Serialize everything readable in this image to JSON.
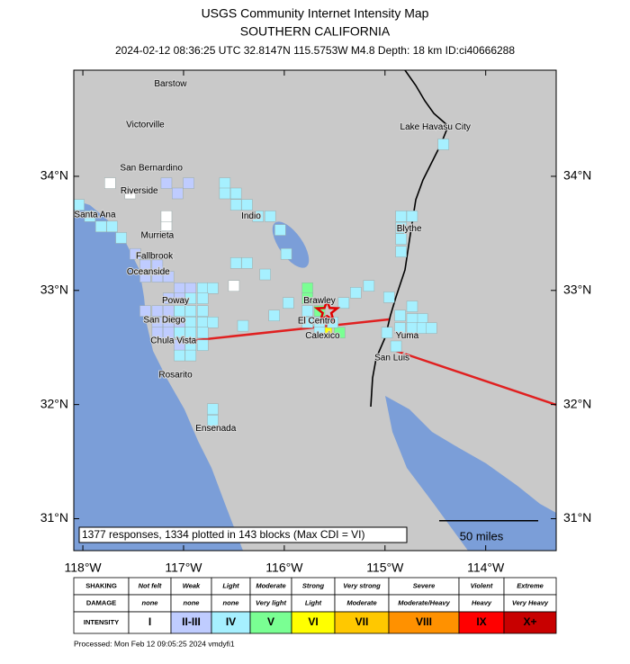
{
  "header": {
    "title": "USGS Community Internet Intensity Map",
    "region": "SOUTHERN CALIFORNIA",
    "event": "2024-02-12 08:36:25 UTC 32.8147N 115.5753W M4.8 Depth: 18 km ID:ci40666288"
  },
  "map": {
    "lonlim": [
      -118.09,
      -113.3
    ],
    "latlim": [
      30.72,
      34.93
    ],
    "lat_ticks": [
      {
        "value": 34,
        "label": "34°N"
      },
      {
        "value": 33,
        "label": "33°N"
      },
      {
        "value": 32,
        "label": "32°N"
      },
      {
        "value": 31,
        "label": "31°N"
      }
    ],
    "lon_ticks": [
      {
        "value": -118,
        "label": "118°W"
      },
      {
        "value": -117,
        "label": "117°W"
      },
      {
        "value": -116,
        "label": "116°W"
      },
      {
        "value": -115,
        "label": "115°W"
      },
      {
        "value": -114,
        "label": "114°W"
      }
    ],
    "epicenter": {
      "lon": -115.5753,
      "lat": 32.8147
    },
    "cities": [
      {
        "name": "Barstow",
        "lon": -117.13,
        "lat": 34.81
      },
      {
        "name": "Victorville",
        "lon": -117.38,
        "lat": 34.45
      },
      {
        "name": "San Bernardino",
        "lon": -117.32,
        "lat": 34.07
      },
      {
        "name": "Riverside",
        "lon": -117.44,
        "lat": 33.87
      },
      {
        "name": "Santa Ana",
        "lon": -117.88,
        "lat": 33.66
      },
      {
        "name": "Murrieta",
        "lon": -117.26,
        "lat": 33.48
      },
      {
        "name": "Fallbrook",
        "lon": -117.29,
        "lat": 33.3
      },
      {
        "name": "Oceanside",
        "lon": -117.35,
        "lat": 33.16
      },
      {
        "name": "Poway",
        "lon": -117.08,
        "lat": 32.91
      },
      {
        "name": "San Diego",
        "lon": -117.19,
        "lat": 32.74
      },
      {
        "name": "Chula Vista",
        "lon": -117.1,
        "lat": 32.56
      },
      {
        "name": "Rosarito",
        "lon": -117.08,
        "lat": 32.26
      },
      {
        "name": "Ensenada",
        "lon": -116.68,
        "lat": 31.79
      },
      {
        "name": "Indio",
        "lon": -116.33,
        "lat": 33.65
      },
      {
        "name": "Blythe",
        "lon": -114.76,
        "lat": 33.54
      },
      {
        "name": "Lake Havasu City",
        "lon": -114.5,
        "lat": 34.43
      },
      {
        "name": "Brawley",
        "lon": -115.65,
        "lat": 32.91
      },
      {
        "name": "El Centro",
        "lon": -115.68,
        "lat": 32.73
      },
      {
        "name": "Calexico",
        "lon": -115.62,
        "lat": 32.6
      },
      {
        "name": "Yuma",
        "lon": -114.78,
        "lat": 32.6
      },
      {
        "name": "San Luis",
        "lon": -114.93,
        "lat": 32.41
      }
    ],
    "blocks": [
      {
        "lon": -114.42,
        "lat": 34.28,
        "cdi": 4
      },
      {
        "lon": -114.84,
        "lat": 33.65,
        "cdi": 4
      },
      {
        "lon": -114.73,
        "lat": 33.65,
        "cdi": 4
      },
      {
        "lon": -114.84,
        "lat": 33.55,
        "cdi": 4
      },
      {
        "lon": -114.84,
        "lat": 33.45,
        "cdi": 4
      },
      {
        "lon": -114.84,
        "lat": 33.34,
        "cdi": 4
      },
      {
        "lon": -116.59,
        "lat": 33.94,
        "cdi": 4
      },
      {
        "lon": -116.59,
        "lat": 33.85,
        "cdi": 4
      },
      {
        "lon": -116.48,
        "lat": 33.85,
        "cdi": 4
      },
      {
        "lon": -116.48,
        "lat": 33.75,
        "cdi": 4
      },
      {
        "lon": -116.37,
        "lat": 33.75,
        "cdi": 4
      },
      {
        "lon": -116.26,
        "lat": 33.65,
        "cdi": 4
      },
      {
        "lon": -116.14,
        "lat": 33.65,
        "cdi": 4
      },
      {
        "lon": -116.04,
        "lat": 33.53,
        "cdi": 4
      },
      {
        "lon": -116.48,
        "lat": 33.24,
        "cdi": 4
      },
      {
        "lon": -116.37,
        "lat": 33.24,
        "cdi": 4
      },
      {
        "lon": -116.19,
        "lat": 33.14,
        "cdi": 4
      },
      {
        "lon": -115.98,
        "lat": 33.32,
        "cdi": 4
      },
      {
        "lon": -118.04,
        "lat": 33.75,
        "cdi": 4
      },
      {
        "lon": -117.93,
        "lat": 33.65,
        "cdi": 4
      },
      {
        "lon": -117.82,
        "lat": 33.56,
        "cdi": 4
      },
      {
        "lon": -117.71,
        "lat": 33.56,
        "cdi": 4
      },
      {
        "lon": -117.62,
        "lat": 33.46,
        "cdi": 4
      },
      {
        "lon": -117.73,
        "lat": 33.94,
        "cdi": 1
      },
      {
        "lon": -117.53,
        "lat": 33.85,
        "cdi": 1
      },
      {
        "lon": -117.17,
        "lat": 33.57,
        "cdi": 1
      },
      {
        "lon": -117.17,
        "lat": 33.65,
        "cdi": 1
      },
      {
        "lon": -116.5,
        "lat": 33.04,
        "cdi": 1
      },
      {
        "lon": -117.17,
        "lat": 33.94,
        "cdi": 2
      },
      {
        "lon": -116.95,
        "lat": 33.94,
        "cdi": 2
      },
      {
        "lon": -117.06,
        "lat": 33.85,
        "cdi": 2
      },
      {
        "lon": -117.48,
        "lat": 33.32,
        "cdi": 2
      },
      {
        "lon": -117.38,
        "lat": 33.22,
        "cdi": 2
      },
      {
        "lon": -117.26,
        "lat": 33.22,
        "cdi": 2
      },
      {
        "lon": -117.38,
        "lat": 33.12,
        "cdi": 2
      },
      {
        "lon": -117.26,
        "lat": 33.12,
        "cdi": 2
      },
      {
        "lon": -117.15,
        "lat": 33.12,
        "cdi": 2
      },
      {
        "lon": -117.04,
        "lat": 33.02,
        "cdi": 2
      },
      {
        "lon": -116.93,
        "lat": 33.02,
        "cdi": 2
      },
      {
        "lon": -117.15,
        "lat": 32.93,
        "cdi": 2
      },
      {
        "lon": -117.04,
        "lat": 32.93,
        "cdi": 2
      },
      {
        "lon": -117.38,
        "lat": 32.82,
        "cdi": 2
      },
      {
        "lon": -117.26,
        "lat": 32.82,
        "cdi": 2
      },
      {
        "lon": -117.15,
        "lat": 32.82,
        "cdi": 2
      },
      {
        "lon": -117.26,
        "lat": 32.72,
        "cdi": 2
      },
      {
        "lon": -117.15,
        "lat": 32.72,
        "cdi": 2
      },
      {
        "lon": -117.04,
        "lat": 32.72,
        "cdi": 2
      },
      {
        "lon": -117.26,
        "lat": 32.63,
        "cdi": 2
      },
      {
        "lon": -117.15,
        "lat": 32.63,
        "cdi": 2
      },
      {
        "lon": -117.04,
        "lat": 32.52,
        "cdi": 2
      },
      {
        "lon": -116.81,
        "lat": 33.02,
        "cdi": 4
      },
      {
        "lon": -116.71,
        "lat": 33.02,
        "cdi": 4
      },
      {
        "lon": -116.93,
        "lat": 32.93,
        "cdi": 4
      },
      {
        "lon": -116.81,
        "lat": 32.93,
        "cdi": 4
      },
      {
        "lon": -117.04,
        "lat": 32.82,
        "cdi": 4
      },
      {
        "lon": -116.93,
        "lat": 32.82,
        "cdi": 4
      },
      {
        "lon": -116.81,
        "lat": 32.82,
        "cdi": 4
      },
      {
        "lon": -116.93,
        "lat": 32.72,
        "cdi": 4
      },
      {
        "lon": -116.81,
        "lat": 32.72,
        "cdi": 4
      },
      {
        "lon": -116.71,
        "lat": 32.72,
        "cdi": 4
      },
      {
        "lon": -117.04,
        "lat": 32.63,
        "cdi": 4
      },
      {
        "lon": -116.93,
        "lat": 32.63,
        "cdi": 4
      },
      {
        "lon": -116.81,
        "lat": 32.63,
        "cdi": 4
      },
      {
        "lon": -116.93,
        "lat": 32.52,
        "cdi": 4
      },
      {
        "lon": -116.81,
        "lat": 32.52,
        "cdi": 4
      },
      {
        "lon": -116.93,
        "lat": 32.43,
        "cdi": 4
      },
      {
        "lon": -117.04,
        "lat": 32.43,
        "cdi": 4
      },
      {
        "lon": -116.41,
        "lat": 32.69,
        "cdi": 4
      },
      {
        "lon": -116.1,
        "lat": 32.78,
        "cdi": 4
      },
      {
        "lon": -115.96,
        "lat": 32.89,
        "cdi": 4
      },
      {
        "lon": -115.41,
        "lat": 32.89,
        "cdi": 4
      },
      {
        "lon": -115.29,
        "lat": 32.98,
        "cdi": 4
      },
      {
        "lon": -115.16,
        "lat": 33.04,
        "cdi": 4
      },
      {
        "lon": -114.96,
        "lat": 32.94,
        "cdi": 4
      },
      {
        "lon": -114.85,
        "lat": 32.78,
        "cdi": 4
      },
      {
        "lon": -114.73,
        "lat": 32.86,
        "cdi": 4
      },
      {
        "lon": -114.63,
        "lat": 32.75,
        "cdi": 4
      },
      {
        "lon": -114.73,
        "lat": 32.75,
        "cdi": 4
      },
      {
        "lon": -114.85,
        "lat": 32.67,
        "cdi": 4
      },
      {
        "lon": -114.73,
        "lat": 32.67,
        "cdi": 4
      },
      {
        "lon": -114.63,
        "lat": 32.67,
        "cdi": 4
      },
      {
        "lon": -114.54,
        "lat": 32.67,
        "cdi": 4
      },
      {
        "lon": -114.98,
        "lat": 32.63,
        "cdi": 4
      },
      {
        "lon": -114.89,
        "lat": 32.51,
        "cdi": 4
      },
      {
        "lon": -116.71,
        "lat": 31.96,
        "cdi": 4
      },
      {
        "lon": -116.71,
        "lat": 31.86,
        "cdi": 4
      },
      {
        "lon": -115.77,
        "lat": 33.02,
        "cdi": 5
      },
      {
        "lon": -115.77,
        "lat": 32.93,
        "cdi": 5
      },
      {
        "lon": -115.65,
        "lat": 32.82,
        "cdi": 5
      },
      {
        "lon": -115.77,
        "lat": 32.82,
        "cdi": 4
      },
      {
        "lon": -115.77,
        "lat": 32.72,
        "cdi": 4
      },
      {
        "lon": -115.65,
        "lat": 32.72,
        "cdi": 4
      },
      {
        "lon": -115.58,
        "lat": 32.63,
        "cdi": 6
      },
      {
        "lon": -115.45,
        "lat": 32.63,
        "cdi": 5
      },
      {
        "lon": -115.52,
        "lat": 32.72,
        "cdi": 4
      },
      {
        "lon": -115.65,
        "lat": 32.63,
        "cdi": 4
      }
    ],
    "note": "1377 responses, 1334 plotted in 143 blocks (Max CDI = VI)",
    "scale_label": "50 miles"
  },
  "legend": {
    "row_labels": [
      "SHAKING",
      "DAMAGE",
      "INTENSITY"
    ],
    "shaking": [
      "Not felt",
      "Weak",
      "Light",
      "Moderate",
      "Strong",
      "Very strong",
      "Severe",
      "Violent",
      "Extreme"
    ],
    "damage": [
      "none",
      "none",
      "none",
      "Very light",
      "Light",
      "Moderate",
      "Moderate/Heavy",
      "Heavy",
      "Very Heavy"
    ],
    "intensity": [
      "I",
      "II-III",
      "IV",
      "V",
      "VI",
      "VII",
      "VIII",
      "IX",
      "X+"
    ],
    "colors": [
      "#ffffff",
      "#bfccff",
      "#a6f0ff",
      "#7aff93",
      "#ffff00",
      "#ffc800",
      "#ff9100",
      "#ff0000",
      "#c80000"
    ]
  },
  "footer": "Processed: Mon Feb 12 09:05:25 2024 vmdyfi1"
}
